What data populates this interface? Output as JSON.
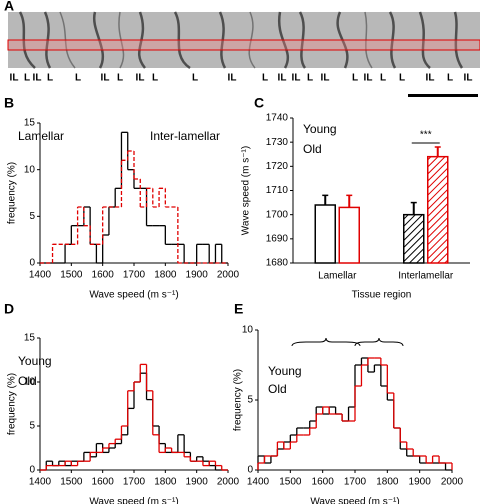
{
  "panel_a": {
    "letter": "A",
    "labels": [
      {
        "text": "IL",
        "color": "#e00000"
      },
      {
        "text": "L",
        "color": "#000000"
      },
      {
        "text": "IL",
        "color": "#e00000"
      },
      {
        "text": "L",
        "color": "#000000"
      },
      {
        "text": "L",
        "color": "#000000"
      },
      {
        "text": "IL",
        "color": "#e00000"
      },
      {
        "text": "L",
        "color": "#000000"
      },
      {
        "text": "IL",
        "color": "#e00000"
      },
      {
        "text": "L",
        "color": "#000000"
      },
      {
        "text": "L",
        "color": "#000000"
      },
      {
        "text": "IL",
        "color": "#e00000"
      },
      {
        "text": "L",
        "color": "#000000"
      },
      {
        "text": "IL",
        "color": "#e00000"
      },
      {
        "text": "IL",
        "color": "#e00000"
      },
      {
        "text": "L",
        "color": "#000000"
      },
      {
        "text": "IL",
        "color": "#e00000"
      },
      {
        "text": "L",
        "color": "#000000"
      },
      {
        "text": "IL",
        "color": "#e00000"
      },
      {
        "text": "L",
        "color": "#000000"
      },
      {
        "text": "L",
        "color": "#000000"
      },
      {
        "text": "IL",
        "color": "#e00000"
      },
      {
        "text": "L",
        "color": "#000000"
      },
      {
        "text": "IL",
        "color": "#e00000"
      }
    ]
  },
  "chart_data": [
    {
      "type": "histogram",
      "panel": "B",
      "x_label": "Wave speed (m s⁻¹)",
      "y_label": "frequency (%)",
      "bins": [
        1400,
        1420,
        1440,
        1460,
        1480,
        1500,
        1520,
        1540,
        1560,
        1580,
        1600,
        1620,
        1640,
        1660,
        1680,
        1700,
        1720,
        1740,
        1760,
        1780,
        1800,
        1820,
        1840,
        1860,
        1880,
        1900,
        1920,
        1940,
        1960,
        1980,
        2000
      ],
      "series": [
        {
          "name": "Lamellar",
          "color": "#000000",
          "dashed": false,
          "values": [
            0,
            0,
            0,
            0,
            2,
            4,
            4,
            6,
            2,
            0,
            3,
            6,
            8,
            14,
            10,
            8,
            8,
            4,
            4,
            4,
            2,
            2,
            2,
            0,
            0,
            2,
            2,
            0,
            2,
            0
          ]
        },
        {
          "name": "Inter-lamellar",
          "color": "#e00000",
          "dashed": true,
          "values": [
            0,
            0,
            2,
            2,
            2,
            2,
            6,
            4,
            2,
            2,
            6,
            6,
            6,
            11,
            12,
            9,
            6,
            8,
            6,
            8,
            6,
            6,
            0,
            0,
            0,
            0,
            0,
            0,
            0,
            0
          ]
        }
      ],
      "xlim": [
        1400,
        2000
      ],
      "xticks": [
        1400,
        1500,
        1600,
        1700,
        1800,
        1900,
        2000
      ],
      "ylim": [
        0,
        15
      ],
      "yticks": [
        0,
        5,
        10,
        15
      ]
    },
    {
      "type": "bar",
      "panel": "C",
      "x_label": "Tissue region",
      "y_label": "Wave speed (m s⁻¹)",
      "categories": [
        "Lamellar",
        "Interlamellar"
      ],
      "hatched": [
        false,
        true
      ],
      "annotation": "***",
      "series": [
        {
          "name": "Young",
          "color": "#000000",
          "values": [
            1704,
            1700
          ],
          "errors": [
            4,
            5
          ]
        },
        {
          "name": "Old",
          "color": "#e00000",
          "values": [
            1703,
            1724
          ],
          "errors": [
            5,
            4
          ]
        }
      ],
      "ylim": [
        1680,
        1740
      ],
      "yticks": [
        1680,
        1690,
        1700,
        1710,
        1720,
        1730,
        1740
      ]
    },
    {
      "type": "histogram",
      "panel": "D",
      "x_label": "Wave speed (m s⁻¹)",
      "y_label": "frequency (%)",
      "bins": [
        1400,
        1420,
        1440,
        1460,
        1480,
        1500,
        1520,
        1540,
        1560,
        1580,
        1600,
        1620,
        1640,
        1660,
        1680,
        1700,
        1720,
        1740,
        1760,
        1780,
        1800,
        1820,
        1840,
        1860,
        1880,
        1900,
        1920,
        1940,
        1960,
        1980,
        2000
      ],
      "series": [
        {
          "name": "Young",
          "color": "#000000",
          "dashed": false,
          "values": [
            0,
            1,
            0.5,
            1,
            0.5,
            1,
            1,
            2,
            1.5,
            3,
            2,
            2.5,
            3,
            4,
            7,
            10,
            11,
            8,
            5,
            3,
            2,
            2,
            4,
            2,
            1,
            1.5,
            1,
            0.5,
            0,
            0
          ]
        },
        {
          "name": "Old",
          "color": "#e00000",
          "dashed": false,
          "values": [
            0,
            0.5,
            0.5,
            0.5,
            1,
            0.5,
            1,
            1,
            2,
            2,
            2.5,
            3,
            3.5,
            5,
            9,
            10,
            12,
            9,
            4,
            2,
            2.5,
            2,
            2,
            1.5,
            1,
            1,
            0.5,
            1,
            0.5,
            0
          ]
        }
      ],
      "xlim": [
        1400,
        2000
      ],
      "xticks": [
        1400,
        1500,
        1600,
        1700,
        1800,
        1900,
        2000
      ],
      "ylim": [
        0,
        15
      ],
      "yticks": [
        0,
        5,
        10,
        15
      ]
    },
    {
      "type": "histogram",
      "panel": "E",
      "x_label": "Wave speed (m s⁻¹)",
      "y_label": "frequency (%)",
      "bins": [
        1400,
        1420,
        1440,
        1460,
        1480,
        1500,
        1520,
        1540,
        1560,
        1580,
        1600,
        1620,
        1640,
        1660,
        1680,
        1700,
        1720,
        1740,
        1760,
        1780,
        1800,
        1820,
        1840,
        1860,
        1880,
        1900,
        1920,
        1940,
        1960,
        1980,
        2000
      ],
      "series": [
        {
          "name": "Young",
          "color": "#000000",
          "dashed": false,
          "values": [
            1,
            0.5,
            1,
            1.5,
            2,
            2.5,
            3,
            3,
            3.5,
            4.5,
            4,
            4.5,
            4,
            3.5,
            4.5,
            7.5,
            8,
            7,
            7.5,
            6,
            5,
            3,
            1.5,
            1,
            1,
            0.5,
            0.5,
            0.5,
            0.5,
            0
          ]
        },
        {
          "name": "Old",
          "color": "#e00000",
          "dashed": false,
          "values": [
            0.5,
            1,
            1,
            2,
            1.5,
            2,
            2.5,
            2.5,
            3,
            4,
            4.5,
            4,
            4,
            3.5,
            3.5,
            6,
            7.5,
            8,
            8,
            7.5,
            5.5,
            3,
            2,
            1.5,
            1,
            1,
            0.5,
            1,
            0.5,
            0.5
          ]
        }
      ],
      "xlim": [
        1400,
        2000
      ],
      "xticks": [
        1400,
        1500,
        1600,
        1700,
        1800,
        1900,
        2000
      ],
      "ylim": [
        0,
        10
      ],
      "yticks": [
        0,
        5,
        10
      ]
    }
  ]
}
